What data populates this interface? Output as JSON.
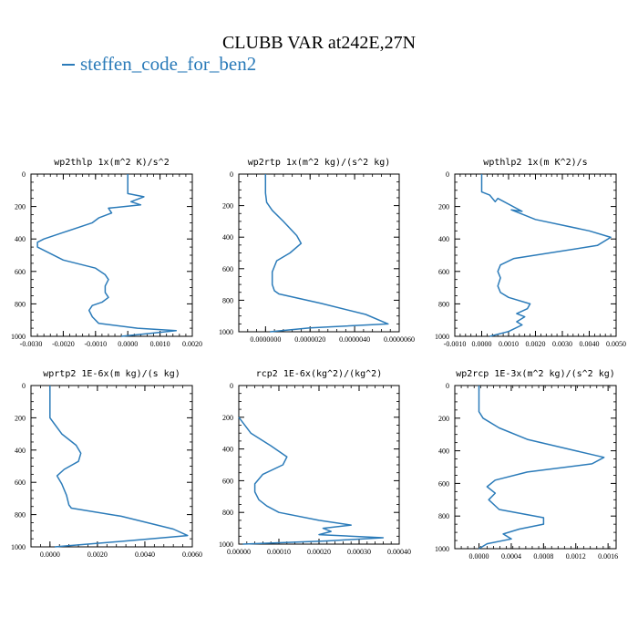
{
  "title": "CLUBB VAR at242E,27N",
  "legend": {
    "label": "steffen_code_for_ben2",
    "color": "#2b7bb9"
  },
  "chart_data": [
    {
      "type": "line",
      "title": "wp2thlp   1x(m^2 K)/s^2",
      "xlim": [
        -0.003,
        0.002
      ],
      "ylim": [
        1000,
        0
      ],
      "xticks": [
        "-0.0030",
        "-0.0020",
        "-0.0010",
        "0.0000",
        "0.0010",
        "0.0020"
      ],
      "xtick_values": [
        -0.003,
        -0.002,
        -0.001,
        0,
        0.001,
        0.002
      ],
      "yticks": [
        "0",
        "200",
        "400",
        "600",
        "800",
        "1000"
      ],
      "series": [
        {
          "x": [
            0.0,
            0.0,
            0.0005,
            0.0001,
            0.0004,
            -0.0006,
            -0.0005,
            -0.0009,
            -0.0011,
            -0.002,
            -0.0026,
            -0.0028,
            -0.0028,
            -0.002,
            -0.001,
            -0.0007,
            -0.0006,
            -0.0007,
            -0.0007,
            -0.0006,
            -0.0008,
            -0.0011,
            -0.0012,
            -0.0011,
            -0.0009,
            0.0003,
            0.0015,
            0.0008,
            -0.0002
          ],
          "y": [
            0,
            120,
            140,
            170,
            190,
            210,
            240,
            270,
            300,
            360,
            400,
            420,
            450,
            530,
            580,
            620,
            650,
            690,
            730,
            760,
            790,
            810,
            840,
            880,
            920,
            950,
            965,
            980,
            1000
          ]
        }
      ]
    },
    {
      "type": "line",
      "title": "wp2rtp   1x(m^2 kg)/(s^2 kg)",
      "xlim": [
        -1.2e-06,
        6e-06
      ],
      "ylim": [
        1000,
        0
      ],
      "xticks": [
        "0.0000000",
        "0.0000020",
        "0.0000040",
        "0.0000060"
      ],
      "xtick_values": [
        0,
        2e-06,
        4e-06,
        6e-06
      ],
      "yticks": [
        "0",
        "200",
        "400",
        "600",
        "800",
        "1000"
      ],
      "series": [
        {
          "x": [
            0.0,
            0.0,
            5e-08,
            3e-07,
            8e-07,
            1.4e-06,
            1.6e-06,
            1.1e-06,
            5e-07,
            3e-07,
            3e-07,
            4e-07,
            6e-07,
            2.5e-06,
            4.5e-06,
            5.5e-06,
            2e-06,
            2e-07
          ],
          "y": [
            0,
            120,
            180,
            230,
            300,
            390,
            440,
            500,
            550,
            620,
            700,
            740,
            760,
            820,
            890,
            950,
            975,
            1000
          ]
        }
      ]
    },
    {
      "type": "line",
      "title": "wpthlp2   1x(m K^2)/s",
      "xlim": [
        -0.001,
        0.005
      ],
      "ylim": [
        1000,
        0
      ],
      "xticks": [
        "-0.0010",
        "0.0000",
        "0.0010",
        "0.0020",
        "0.0030",
        "0.0040",
        "0.0050"
      ],
      "xtick_values": [
        -0.001,
        0,
        0.001,
        0.002,
        0.003,
        0.004,
        0.005
      ],
      "yticks": [
        "0",
        "200",
        "400",
        "600",
        "800",
        "1000"
      ],
      "series": [
        {
          "x": [
            0.0,
            0.0,
            0.0003,
            0.0005,
            0.0006,
            0.0015,
            0.0011,
            0.002,
            0.004,
            0.0048,
            0.0043,
            0.0012,
            0.0007,
            0.0006,
            0.0007,
            0.0006,
            0.0007,
            0.001,
            0.0018,
            0.0017,
            0.0013,
            0.0016,
            0.0013,
            0.0015,
            0.001,
            0.0003
          ],
          "y": [
            0,
            110,
            130,
            170,
            150,
            230,
            220,
            280,
            350,
            390,
            440,
            520,
            560,
            600,
            640,
            690,
            730,
            760,
            800,
            830,
            860,
            880,
            910,
            930,
            970,
            1000
          ]
        }
      ]
    },
    {
      "type": "line",
      "title": "wprtp2   1E-6x(m kg)/(s kg)",
      "xlim": [
        -0.0008,
        0.006
      ],
      "ylim": [
        1000,
        0
      ],
      "xticks": [
        "0.0000",
        "0.0020",
        "0.0040",
        "0.0060"
      ],
      "xtick_values": [
        0,
        0.002,
        0.004,
        0.006
      ],
      "yticks": [
        "0",
        "200",
        "400",
        "600",
        "800",
        "1000"
      ],
      "series": [
        {
          "x": [
            0.0,
            0.0,
            0.0002,
            0.0005,
            0.0011,
            0.0013,
            0.0012,
            0.0006,
            0.0003,
            0.0005,
            0.0007,
            0.0008,
            0.0009,
            0.003,
            0.0052,
            0.0058,
            0.0035,
            0.0002
          ],
          "y": [
            0,
            200,
            240,
            300,
            370,
            420,
            470,
            520,
            560,
            610,
            680,
            740,
            760,
            810,
            890,
            930,
            960,
            1000
          ]
        }
      ]
    },
    {
      "type": "line",
      "title": "rcp2   1E-6x(kg^2)/(kg^2)",
      "xlim": [
        0.0,
        0.0004
      ],
      "ylim": [
        1000,
        0
      ],
      "xticks": [
        "0.00000",
        "0.00010",
        "0.00020",
        "0.00030",
        "0.00040"
      ],
      "xtick_values": [
        0,
        0.0001,
        0.0002,
        0.0003,
        0.0004
      ],
      "yticks": [
        "0",
        "200",
        "400",
        "600",
        "800",
        "1000"
      ],
      "series": [
        {
          "x": [
            0.0,
            3e-05,
            8e-05,
            0.00012,
            0.00011,
            6e-05,
            4e-05,
            4e-05,
            5e-05,
            7e-05,
            0.0001,
            0.0002,
            0.00028,
            0.00021,
            0.00023,
            0.0002,
            0.00036,
            0.00022,
            1e-05
          ],
          "y": [
            200,
            300,
            380,
            450,
            500,
            560,
            620,
            670,
            720,
            760,
            800,
            850,
            880,
            900,
            920,
            940,
            960,
            980,
            1000
          ]
        }
      ]
    },
    {
      "type": "line",
      "title": "wp2rcp   1E-3x(m^2 kg)/(s^2 kg)",
      "xlim": [
        -0.0003,
        0.0017
      ],
      "ylim": [
        1000,
        0
      ],
      "xticks": [
        "0.0000",
        "0.0004",
        "0.0008",
        "0.0012",
        "0.0016"
      ],
      "xtick_values": [
        0,
        0.0004,
        0.0008,
        0.0012,
        0.0016
      ],
      "yticks": [
        "0",
        "200",
        "400",
        "600",
        "800",
        "1000"
      ],
      "series": [
        {
          "x": [
            0.0,
            0.0,
            5e-05,
            0.00025,
            0.0006,
            0.0012,
            0.00155,
            0.0014,
            0.0006,
            0.0002,
            0.0001,
            0.0002,
            0.00012,
            0.00025,
            0.0008,
            0.0008,
            0.0005,
            0.0003,
            0.0004,
            0.0001,
            0.0
          ],
          "y": [
            0,
            160,
            200,
            260,
            330,
            400,
            440,
            480,
            530,
            580,
            620,
            660,
            700,
            760,
            810,
            850,
            880,
            910,
            940,
            970,
            1000
          ]
        }
      ]
    }
  ]
}
